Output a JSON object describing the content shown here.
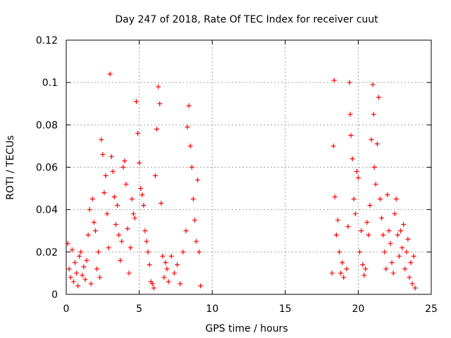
{
  "chart_data": {
    "type": "scatter",
    "title": "Day 247 of 2018, Rate Of TEC Index for receiver cuut",
    "xlabel": "GPS time / hours",
    "ylabel": "ROTI / TECUs",
    "xlim": [
      0,
      25
    ],
    "ylim": [
      0,
      0.12
    ],
    "xticks": [
      0,
      5,
      10,
      15,
      20,
      25
    ],
    "xtick_labels": [
      "0",
      "5",
      "10",
      "15",
      "20",
      "25"
    ],
    "yticks": [
      0,
      0.02,
      0.04,
      0.06,
      0.08,
      0.1,
      0.12
    ],
    "ytick_labels": [
      "0",
      "0.02",
      "0.04",
      "0.06",
      "0.08",
      "0.1",
      "0.12"
    ],
    "grid": true,
    "marker": "plus",
    "color": "#ff0000",
    "series": [
      {
        "name": "ROTI",
        "points": [
          [
            0.1,
            0.024
          ],
          [
            0.2,
            0.012
          ],
          [
            0.3,
            0.008
          ],
          [
            0.4,
            0.021
          ],
          [
            0.5,
            0.006
          ],
          [
            0.6,
            0.015
          ],
          [
            0.7,
            0.01
          ],
          [
            0.8,
            0.004
          ],
          [
            0.9,
            0.018
          ],
          [
            1.0,
            0.02
          ],
          [
            1.1,
            0.009
          ],
          [
            1.2,
            0.013
          ],
          [
            1.3,
            0.007
          ],
          [
            1.4,
            0.016
          ],
          [
            1.5,
            0.028
          ],
          [
            1.6,
            0.04
          ],
          [
            1.7,
            0.005
          ],
          [
            1.8,
            0.045
          ],
          [
            1.9,
            0.034
          ],
          [
            2.0,
            0.03
          ],
          [
            2.1,
            0.012
          ],
          [
            2.2,
            0.02
          ],
          [
            2.3,
            0.008
          ],
          [
            2.4,
            0.073
          ],
          [
            2.5,
            0.066
          ],
          [
            2.6,
            0.048
          ],
          [
            2.7,
            0.056
          ],
          [
            2.8,
            0.038
          ],
          [
            2.9,
            0.022
          ],
          [
            3.0,
            0.104
          ],
          [
            3.1,
            0.065
          ],
          [
            3.2,
            0.058
          ],
          [
            3.3,
            0.046
          ],
          [
            3.4,
            0.033
          ],
          [
            3.5,
            0.042
          ],
          [
            3.6,
            0.028
          ],
          [
            3.7,
            0.016
          ],
          [
            3.8,
            0.025
          ],
          [
            3.9,
            0.06
          ],
          [
            4.0,
            0.063
          ],
          [
            4.1,
            0.052
          ],
          [
            4.2,
            0.031
          ],
          [
            4.3,
            0.01
          ],
          [
            4.4,
            0.022
          ],
          [
            4.5,
            0.045
          ],
          [
            4.6,
            0.038
          ],
          [
            4.7,
            0.036
          ],
          [
            4.8,
            0.091
          ],
          [
            4.9,
            0.076
          ],
          [
            5.0,
            0.062
          ],
          [
            5.1,
            0.05
          ],
          [
            5.2,
            0.047
          ],
          [
            5.3,
            0.042
          ],
          [
            5.4,
            0.03
          ],
          [
            5.5,
            0.025
          ],
          [
            5.6,
            0.02
          ],
          [
            5.7,
            0.014
          ],
          [
            5.8,
            0.006
          ],
          [
            5.9,
            0.005
          ],
          [
            6.0,
            0.003
          ],
          [
            6.1,
            0.056
          ],
          [
            6.2,
            0.078
          ],
          [
            6.3,
            0.098
          ],
          [
            6.4,
            0.09
          ],
          [
            6.5,
            0.043
          ],
          [
            6.6,
            0.018
          ],
          [
            6.7,
            0.008
          ],
          [
            6.8,
            0.015
          ],
          [
            6.9,
            0.012
          ],
          [
            7.0,
            0.006
          ],
          [
            7.2,
            0.018
          ],
          [
            7.4,
            0.01
          ],
          [
            7.6,
            0.014
          ],
          [
            7.8,
            0.005
          ],
          [
            8.0,
            0.02
          ],
          [
            8.2,
            0.03
          ],
          [
            8.3,
            0.079
          ],
          [
            8.4,
            0.089
          ],
          [
            8.5,
            0.07
          ],
          [
            8.6,
            0.06
          ],
          [
            8.7,
            0.045
          ],
          [
            8.8,
            0.035
          ],
          [
            8.9,
            0.025
          ],
          [
            9.0,
            0.054
          ],
          [
            9.1,
            0.02
          ],
          [
            9.2,
            0.004
          ],
          [
            18.2,
            0.01
          ],
          [
            18.3,
            0.07
          ],
          [
            18.35,
            0.101
          ],
          [
            18.4,
            0.046
          ],
          [
            18.5,
            0.028
          ],
          [
            18.6,
            0.035
          ],
          [
            18.7,
            0.02
          ],
          [
            18.8,
            0.01
          ],
          [
            18.9,
            0.015
          ],
          [
            19.0,
            0.008
          ],
          [
            19.2,
            0.012
          ],
          [
            19.3,
            0.032
          ],
          [
            19.4,
            0.1
          ],
          [
            19.45,
            0.085
          ],
          [
            19.5,
            0.075
          ],
          [
            19.6,
            0.064
          ],
          [
            19.7,
            0.045
          ],
          [
            19.8,
            0.038
          ],
          [
            19.9,
            0.058
          ],
          [
            20.0,
            0.055
          ],
          [
            20.1,
            0.02
          ],
          [
            20.2,
            0.03
          ],
          [
            20.3,
            0.014
          ],
          [
            20.4,
            0.009
          ],
          [
            20.5,
            0.012
          ],
          [
            20.6,
            0.034
          ],
          [
            20.7,
            0.028
          ],
          [
            20.8,
            0.042
          ],
          [
            20.9,
            0.073
          ],
          [
            21.0,
            0.099
          ],
          [
            21.05,
            0.085
          ],
          [
            21.1,
            0.06
          ],
          [
            21.2,
            0.052
          ],
          [
            21.3,
            0.071
          ],
          [
            21.4,
            0.093
          ],
          [
            21.5,
            0.045
          ],
          [
            21.6,
            0.036
          ],
          [
            21.7,
            0.028
          ],
          [
            21.8,
            0.02
          ],
          [
            21.9,
            0.012
          ],
          [
            22.0,
            0.047
          ],
          [
            22.1,
            0.03
          ],
          [
            22.2,
            0.024
          ],
          [
            22.3,
            0.015
          ],
          [
            22.4,
            0.01
          ],
          [
            22.5,
            0.038
          ],
          [
            22.6,
            0.045
          ],
          [
            22.7,
            0.028
          ],
          [
            22.8,
            0.018
          ],
          [
            22.9,
            0.03
          ],
          [
            23.0,
            0.022
          ],
          [
            23.1,
            0.033
          ],
          [
            23.2,
            0.012
          ],
          [
            23.3,
            0.02
          ],
          [
            23.4,
            0.026
          ],
          [
            23.5,
            0.008
          ],
          [
            23.6,
            0.015
          ],
          [
            23.7,
            0.005
          ],
          [
            23.8,
            0.018
          ],
          [
            23.9,
            0.003
          ]
        ]
      }
    ]
  }
}
